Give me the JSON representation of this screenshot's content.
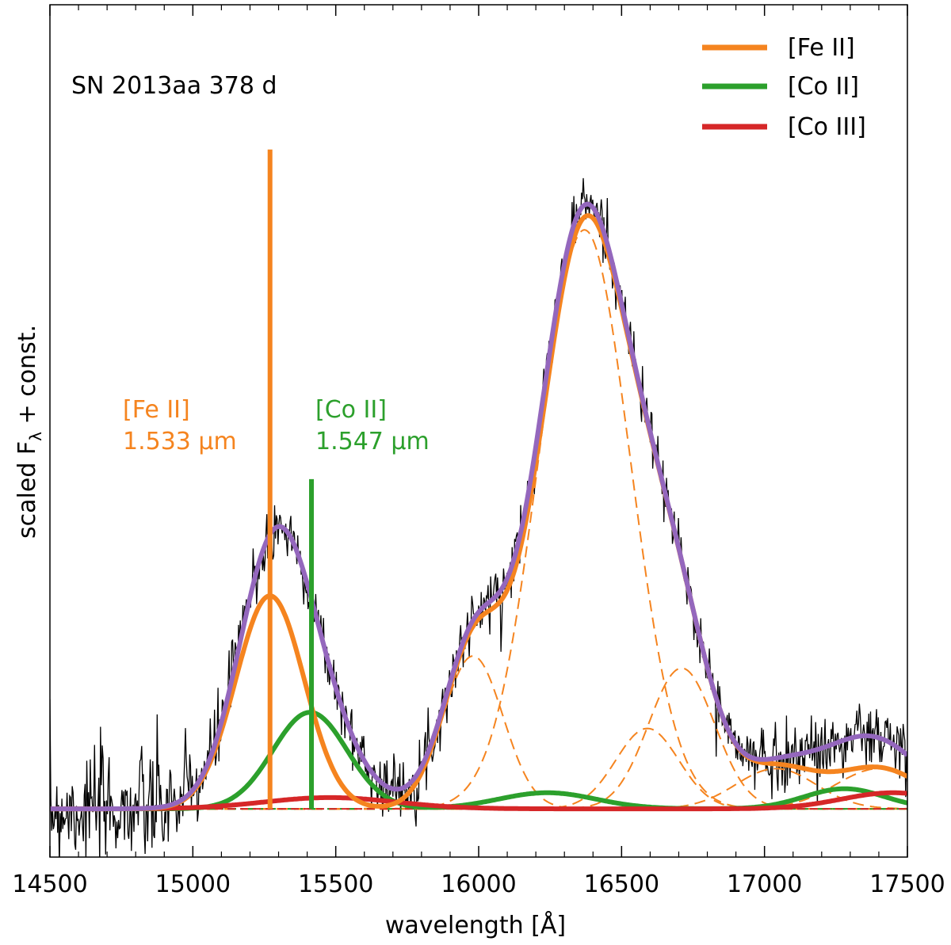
{
  "chart_data": {
    "type": "line",
    "title": "SN 2013aa 378 d",
    "xlabel": "wavelength [Å]",
    "ylabel_main": "scaled F",
    "ylabel_sub": "λ",
    "ylabel_rest": " + const.",
    "xlim": [
      14500,
      17500
    ],
    "ylim": [
      -0.06,
      1.0
    ],
    "xticks": [
      14500,
      15000,
      15500,
      16000,
      16500,
      17000,
      17500
    ],
    "xtick_labels": [
      "14500",
      "15000",
      "15500",
      "16000",
      "16500",
      "17000",
      "17500"
    ],
    "legend": {
      "placement": "top-right",
      "entries": [
        {
          "label": "[Fe II]",
          "color": "#f5841f"
        },
        {
          "label": "[Co II]",
          "color": "#2ca02c"
        },
        {
          "label": "[Co III]",
          "color": "#d62728"
        }
      ]
    },
    "line_markers": [
      {
        "x": 15270,
        "height": 0.82,
        "color": "#f5841f",
        "label_line1": "[Fe II]",
        "label_line2": "1.533 μm"
      },
      {
        "x": 15415,
        "height": 0.41,
        "color": "#2ca02c",
        "label_line1": "[Co II]",
        "label_line2": "1.547 μm"
      }
    ],
    "components": {
      "fe_ii_dashed": [
        {
          "center": 15270,
          "amp": 0.265,
          "sigma": 120
        },
        {
          "center": 15980,
          "amp": 0.19,
          "sigma": 105
        },
        {
          "center": 16370,
          "amp": 0.72,
          "sigma": 160
        },
        {
          "center": 16590,
          "amp": 0.1,
          "sigma": 110
        },
        {
          "center": 16710,
          "amp": 0.175,
          "sigma": 115
        },
        {
          "center": 17040,
          "amp": 0.05,
          "sigma": 140
        },
        {
          "center": 17400,
          "amp": 0.05,
          "sigma": 150
        }
      ],
      "co_ii_dashed": [
        {
          "center": 15410,
          "amp": 0.12,
          "sigma": 130
        },
        {
          "center": 16240,
          "amp": 0.02,
          "sigma": 170
        },
        {
          "center": 17280,
          "amp": 0.025,
          "sigma": 140
        }
      ],
      "co_iii_dashed": [
        {
          "center": 15480,
          "amp": 0.014,
          "sigma": 230
        },
        {
          "center": 17450,
          "amp": 0.02,
          "sigma": 180
        }
      ]
    },
    "series": [
      {
        "name": "observed spectrum",
        "color": "#000000"
      },
      {
        "name": "[Fe II] total",
        "color": "#f5841f"
      },
      {
        "name": "[Co II] total",
        "color": "#2ca02c"
      },
      {
        "name": "[Co III] total",
        "color": "#d62728"
      },
      {
        "name": "total fit",
        "color": "#9467bd"
      }
    ]
  }
}
